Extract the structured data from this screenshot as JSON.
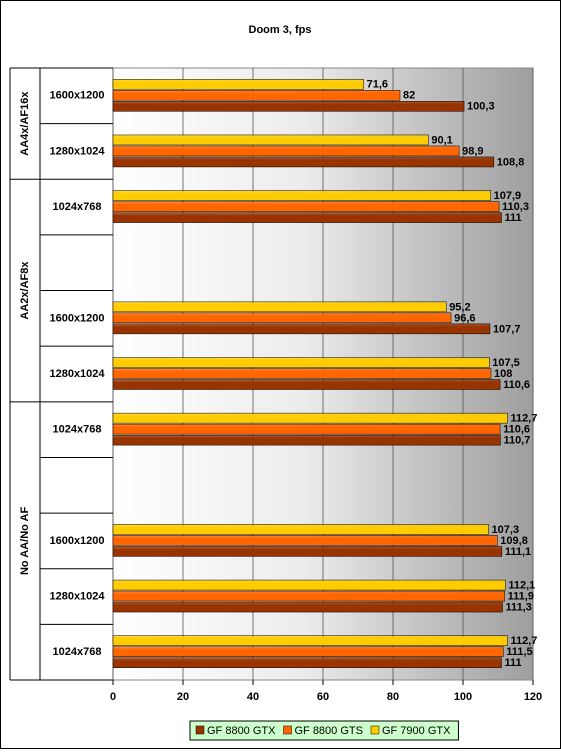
{
  "chart_data": {
    "type": "hbar",
    "title": "Doom 3, fps",
    "groups": [
      {
        "label": "AA4x/AF16x",
        "span": 2
      },
      {
        "label": "AA2x/AF8x",
        "span": 4
      },
      {
        "label": "No AA/No AF",
        "span": 5
      }
    ],
    "categories": [
      "1600x1200",
      "1280x1024",
      "1024x768",
      null,
      "1600x1200",
      "1280x1024",
      "1024x768",
      null,
      "1600x1200",
      "1280x1024",
      "1024x768"
    ],
    "series": [
      {
        "name": "GF 8800 GTX",
        "color": "#993300",
        "values": [
          100.3,
          108.8,
          111,
          null,
          107.7,
          110.6,
          110.7,
          null,
          111.1,
          111.3,
          111
        ],
        "value_labels": [
          "100,3",
          "108,8",
          "111",
          null,
          "107,7",
          "110,6",
          "110,7",
          null,
          "111,1",
          "111,3",
          "111"
        ]
      },
      {
        "name": "GF 8800 GTS",
        "color": "#ff6600",
        "values": [
          82,
          98.9,
          110.3,
          null,
          96.6,
          108,
          110.6,
          null,
          109.8,
          111.9,
          111.5
        ],
        "value_labels": [
          "82",
          "98,9",
          "110,3",
          null,
          "96,6",
          "108",
          "110,6",
          null,
          "109,8",
          "111,9",
          "111,5"
        ]
      },
      {
        "name": "GF 7900 GTX",
        "color": "#ffcc00",
        "values": [
          71.6,
          90.1,
          107.9,
          null,
          95.2,
          107.5,
          112.7,
          null,
          107.3,
          112.1,
          112.7
        ],
        "value_labels": [
          "71,6",
          "90,1",
          "107,9",
          null,
          "95,2",
          "107,5",
          "112,7",
          null,
          "107,3",
          "112,1",
          "112,7"
        ]
      }
    ],
    "xlim": [
      0,
      120
    ],
    "xticks": [
      0,
      20,
      40,
      60,
      80,
      100,
      120
    ],
    "grid": true
  }
}
